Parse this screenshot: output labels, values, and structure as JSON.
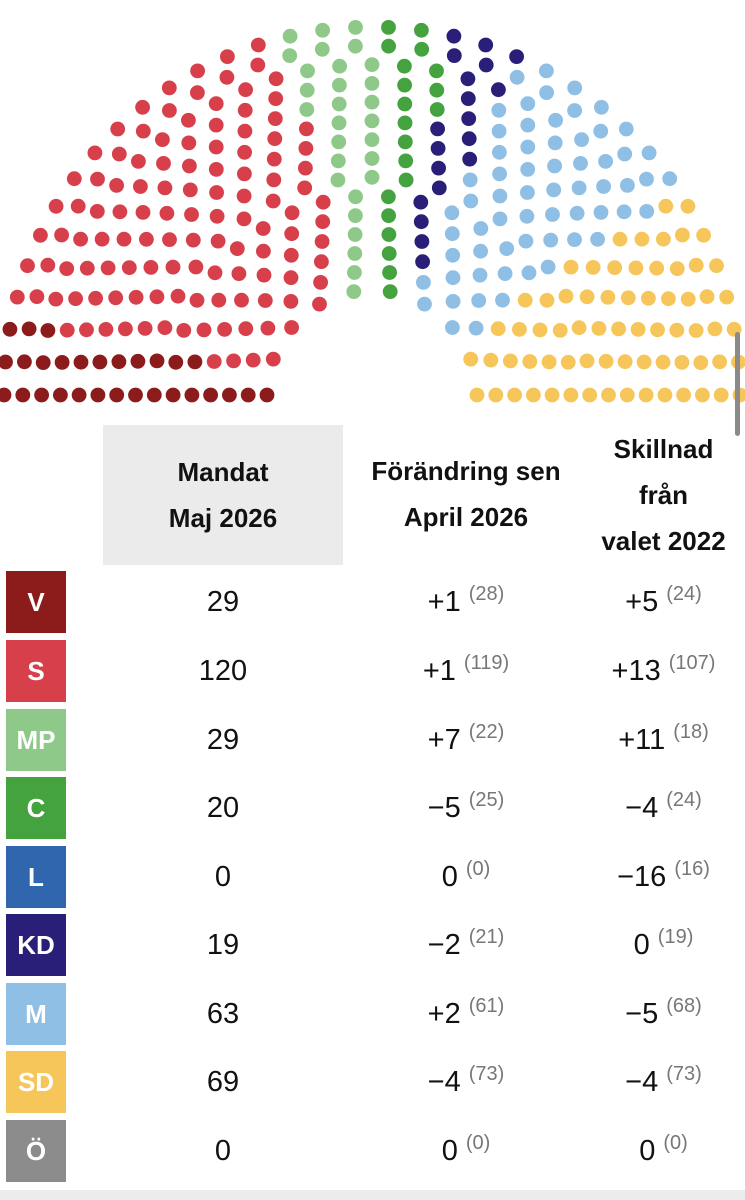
{
  "chart_data": {
    "type": "table",
    "columns": {
      "seats": [
        "Mandat",
        "Maj 2026"
      ],
      "change": [
        "Förändring sen",
        "April 2026"
      ],
      "diff": [
        "Skillnad",
        "från",
        "valet 2022"
      ]
    },
    "rows": [
      {
        "party": "V",
        "color": "#8c1c1c",
        "seats": "29",
        "change": "+1",
        "change_prev": "(28)",
        "diff": "+5",
        "diff_prev": "(24)"
      },
      {
        "party": "S",
        "color": "#d7404b",
        "seats": "120",
        "change": "+1",
        "change_prev": "(119)",
        "diff": "+13",
        "diff_prev": "(107)"
      },
      {
        "party": "MP",
        "color": "#8fc98a",
        "seats": "29",
        "change": "+7",
        "change_prev": "(22)",
        "diff": "+11",
        "diff_prev": "(18)"
      },
      {
        "party": "C",
        "color": "#45a33f",
        "seats": "20",
        "change": "−5",
        "change_prev": "(25)",
        "diff": "−4",
        "diff_prev": "(24)"
      },
      {
        "party": "L",
        "color": "#2f66ad",
        "seats": "0",
        "change": "0",
        "change_prev": "(0)",
        "diff": "−16",
        "diff_prev": "(16)"
      },
      {
        "party": "KD",
        "color": "#2a1f78",
        "seats": "19",
        "change": "−2",
        "change_prev": "(21)",
        "diff": "0",
        "diff_prev": "(19)"
      },
      {
        "party": "M",
        "color": "#8fbfe4",
        "seats": "63",
        "change": "+2",
        "change_prev": "(61)",
        "diff": "−5",
        "diff_prev": "(68)"
      },
      {
        "party": "SD",
        "color": "#f6c65a",
        "seats": "69",
        "change": "−4",
        "change_prev": "(73)",
        "diff": "−4",
        "diff_prev": "(73)"
      },
      {
        "party": "Ö",
        "color": "#8c8c8c",
        "seats": "0",
        "change": "0",
        "change_prev": "(0)",
        "diff": "0",
        "diff_prev": "(0)"
      }
    ]
  }
}
